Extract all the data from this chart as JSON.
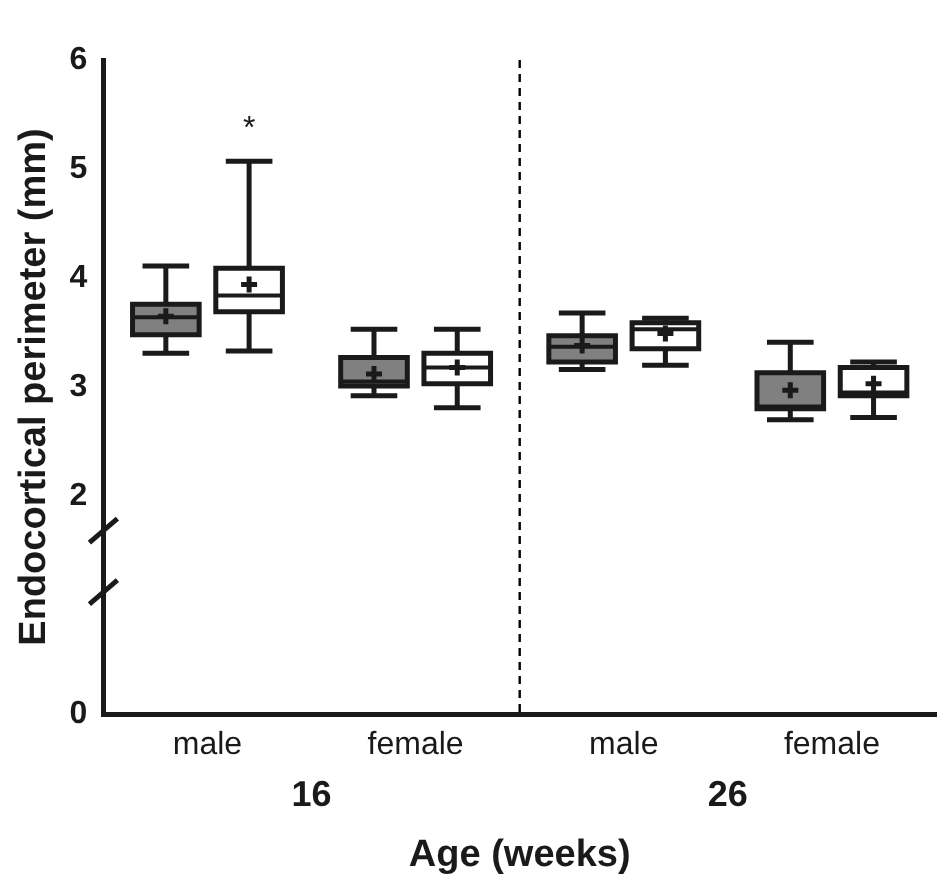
{
  "chart_data": {
    "type": "box",
    "xlabel": "Age (weeks)",
    "ylabel": "Endocortical perimeter (mm)",
    "categories": [
      "male",
      "female",
      "male",
      "female"
    ],
    "ylim": [
      0,
      6
    ],
    "yticks": [
      0,
      2,
      3,
      4,
      5,
      6
    ],
    "series": [
      {
        "color": "#808080",
        "boxes": [
          {
            "low": 3.31,
            "q1": 3.48,
            "median": 3.64,
            "q3": 3.76,
            "high": 4.11,
            "mean": 3.65
          },
          {
            "low": 2.92,
            "q1": 3.01,
            "median": 3.05,
            "q3": 3.27,
            "high": 3.53,
            "mean": 3.12
          },
          {
            "low": 3.16,
            "q1": 3.23,
            "median": 3.37,
            "q3": 3.47,
            "high": 3.68,
            "mean": 3.38
          },
          {
            "low": 2.7,
            "q1": 2.8,
            "median": 2.82,
            "q3": 3.13,
            "high": 3.41,
            "mean": 2.97
          }
        ]
      },
      {
        "color": "#ffffff",
        "boxes": [
          {
            "low": 3.33,
            "q1": 3.69,
            "median": 3.84,
            "q3": 4.09,
            "high": 5.07,
            "mean": 3.94
          },
          {
            "low": 2.81,
            "q1": 3.03,
            "median": 3.18,
            "q3": 3.31,
            "high": 3.53,
            "mean": 3.18
          },
          {
            "low": 3.2,
            "q1": 3.35,
            "median": 3.53,
            "q3": 3.59,
            "high": 3.63,
            "mean": 3.49
          },
          {
            "low": 2.72,
            "q1": 2.92,
            "median": 2.95,
            "q3": 3.18,
            "high": 3.23,
            "mean": 3.03
          }
        ]
      }
    ],
    "annotations": [
      "*",
      "16",
      "26"
    ]
  }
}
